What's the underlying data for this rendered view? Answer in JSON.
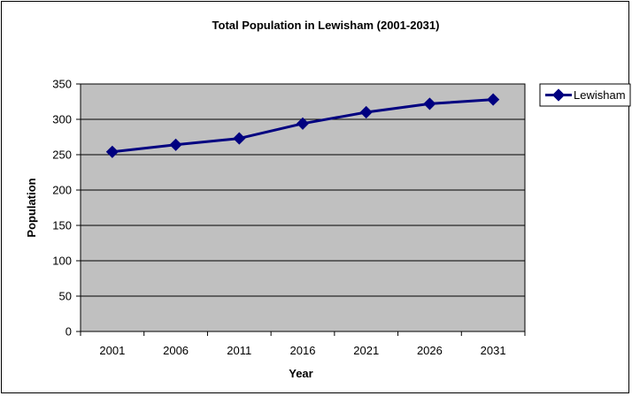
{
  "chart_data": {
    "type": "line",
    "title": "Total Population in Lewisham (2001-2031)",
    "xlabel": "Year",
    "ylabel": "Population",
    "categories": [
      "2001",
      "2006",
      "2011",
      "2016",
      "2021",
      "2026",
      "2031"
    ],
    "series": [
      {
        "name": "Lewisham",
        "values": [
          254,
          264,
          273,
          294,
          310,
          322,
          328
        ],
        "color": "#000080"
      }
    ],
    "ylim": [
      0,
      350
    ],
    "yticks": [
      0,
      50,
      100,
      150,
      200,
      250,
      300,
      350
    ],
    "grid": true,
    "legend_position": "right",
    "plot_background": "#C0C0C0"
  },
  "legend": {
    "label": "Lewisham"
  }
}
